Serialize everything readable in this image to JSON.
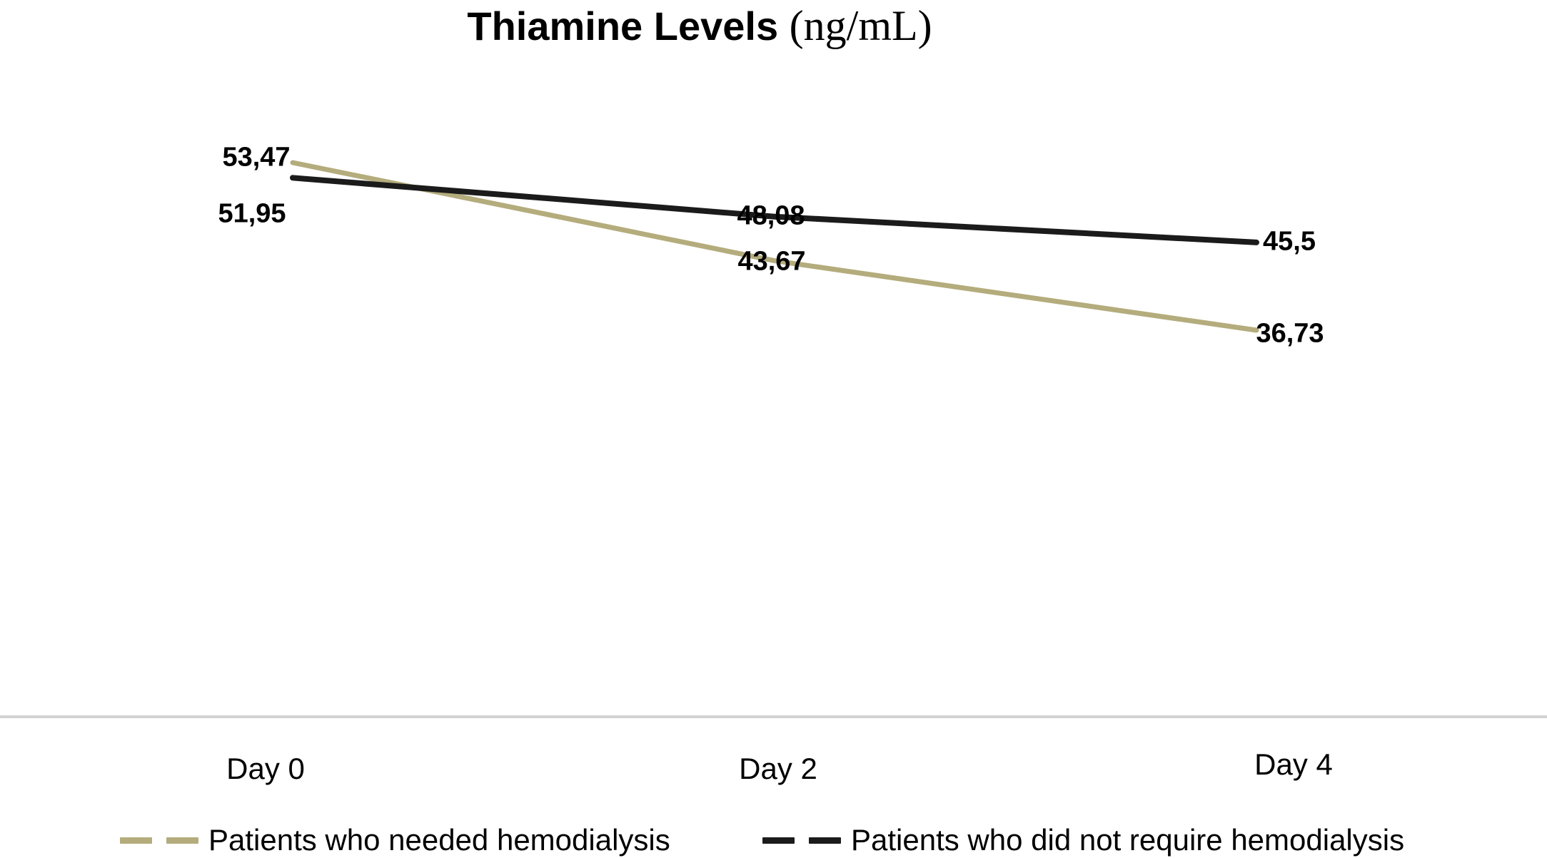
{
  "title": {
    "main": "Thiamine Levels",
    "unit": "(ng/mL)"
  },
  "x_axis": {
    "categories": [
      "Day 0",
      "Day 2",
      "Day 4"
    ]
  },
  "legend": [
    {
      "label": "Patients who needed hemodialysis",
      "color": "#b4ac7c"
    },
    {
      "label": "Patients who did not require hemodialysis",
      "color": "#1b1b1b"
    }
  ],
  "colors": {
    "series_hemodialysis": "#b4ac7c",
    "series_no_hemodialysis": "#1b1b1b",
    "axis_line": "#d2d2d2",
    "text": "#000000",
    "background": "#ffffff"
  },
  "chart_data": {
    "type": "line",
    "title": "Thiamine Levels (ng/mL)",
    "categories": [
      "Day 0",
      "Day 2",
      "Day 4"
    ],
    "series": [
      {
        "name": "Patients who needed hemodialysis",
        "color": "#b4ac7c",
        "values": [
          53.47,
          43.67,
          36.73
        ],
        "labels": [
          "53,47",
          "43,67",
          "36,73"
        ]
      },
      {
        "name": "Patients who did not require hemodialysis",
        "color": "#1b1b1b",
        "values": [
          51.95,
          48.08,
          45.5
        ],
        "labels": [
          "51,95",
          "48,08",
          "45,5"
        ]
      }
    ],
    "decimal_separator": ",",
    "grid": false,
    "y_axis_visible": false,
    "legend_position": "bottom"
  }
}
